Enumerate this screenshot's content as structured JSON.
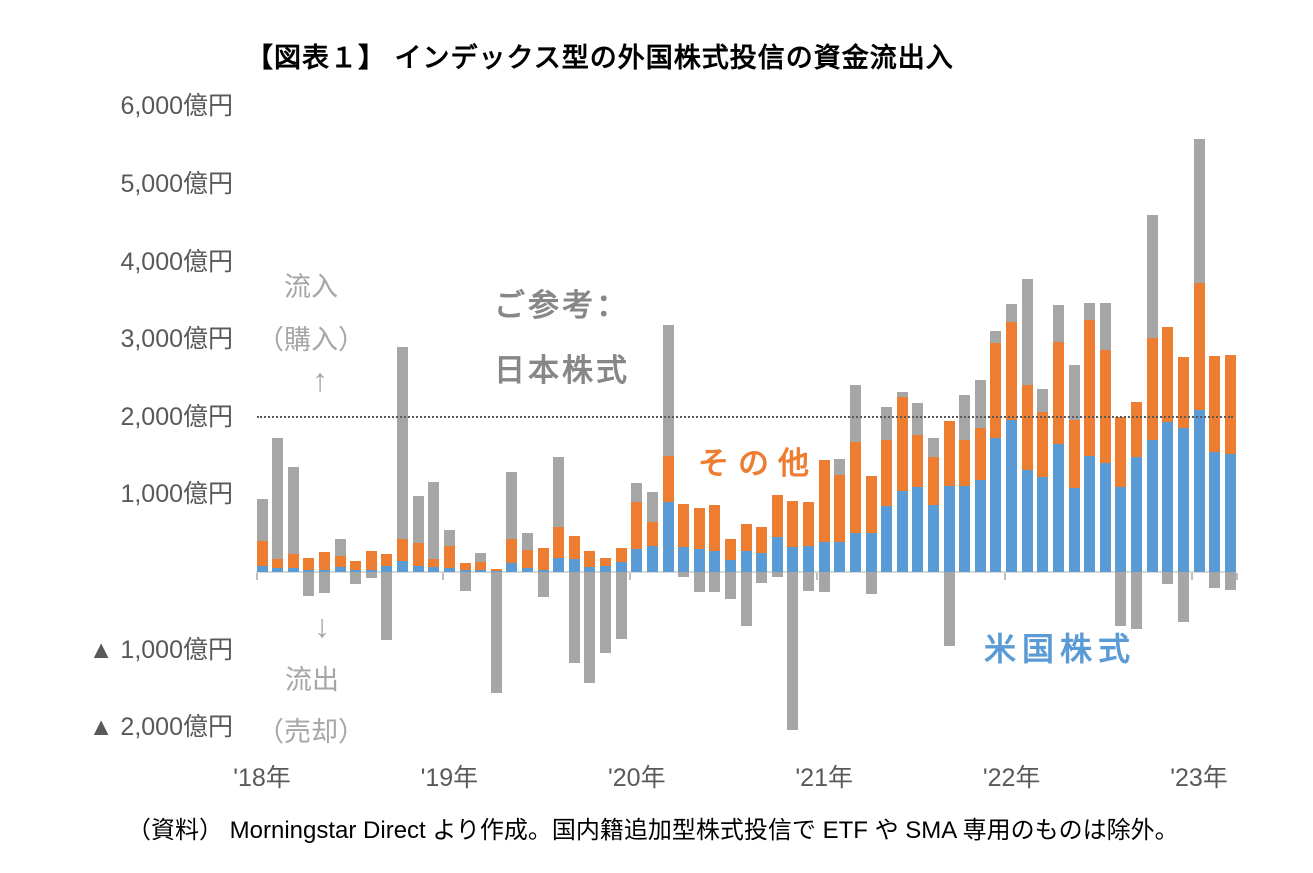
{
  "title": "【図表１】 インデックス型の外国株式投信の資金流出入",
  "source_note": "（資料） Morningstar Direct より作成。国内籍追加型株式投信で ETF や SMA 専用のものは除外。",
  "annotations": {
    "inflow_line1": "流入",
    "inflow_line2": "（購入）",
    "inflow_arrow": "↑",
    "outflow_arrow": "↓",
    "outflow_line1": "流出",
    "outflow_line2": "（売却）",
    "japan_ref_line1": "ご参考：",
    "japan_ref_line2": "日本株式",
    "series_label_other": "その他",
    "series_label_us": "米国株式"
  },
  "colors": {
    "us_blue": "#5B9BD5",
    "other_orange": "#ED7D31",
    "japan_gray": "#A6A6A6",
    "axis_text": "#595959",
    "zero_line": "#D9D9D9",
    "reference_dotted": "#595959"
  },
  "y_axis_labels": [
    {
      "text": "6,000億円",
      "value": 6000
    },
    {
      "text": "5,000億円",
      "value": 5000
    },
    {
      "text": "4,000億円",
      "value": 4000
    },
    {
      "text": "3,000億円",
      "value": 3000
    },
    {
      "text": "2,000億円",
      "value": 2000
    },
    {
      "text": "1,000億円",
      "value": 1000
    },
    {
      "text": "▲ 1,000億円",
      "value": -1000
    },
    {
      "text": "▲ 2,000億円",
      "value": -2000
    }
  ],
  "x_axis_labels": [
    {
      "text": "'18年",
      "month_index": 0
    },
    {
      "text": "'19年",
      "month_index": 12
    },
    {
      "text": "'20年",
      "month_index": 24
    },
    {
      "text": "'21年",
      "month_index": 36
    },
    {
      "text": "'22年",
      "month_index": 48
    },
    {
      "text": "'23年",
      "month_index": 60
    }
  ],
  "chart_data": {
    "type": "bar",
    "stacked": true,
    "unit": "億円",
    "title": "インデックス型の外国株式投信の資金流出入",
    "ylim": [
      -2000,
      6000
    ],
    "grid": false,
    "reference_line_value": 2000,
    "x": [
      "2018-01",
      "2018-02",
      "2018-03",
      "2018-04",
      "2018-05",
      "2018-06",
      "2018-07",
      "2018-08",
      "2018-09",
      "2018-10",
      "2018-11",
      "2018-12",
      "2019-01",
      "2019-02",
      "2019-03",
      "2019-04",
      "2019-05",
      "2019-06",
      "2019-07",
      "2019-08",
      "2019-09",
      "2019-10",
      "2019-11",
      "2019-12",
      "2020-01",
      "2020-02",
      "2020-03",
      "2020-04",
      "2020-05",
      "2020-06",
      "2020-07",
      "2020-08",
      "2020-09",
      "2020-10",
      "2020-11",
      "2020-12",
      "2021-01",
      "2021-02",
      "2021-03",
      "2021-04",
      "2021-05",
      "2021-06",
      "2021-07",
      "2021-08",
      "2021-09",
      "2021-10",
      "2021-11",
      "2021-12",
      "2022-01",
      "2022-02",
      "2022-03",
      "2022-04",
      "2022-05",
      "2022-06",
      "2022-07",
      "2022-08",
      "2022-09",
      "2022-10",
      "2022-11",
      "2022-12",
      "2023-01",
      "2023-02",
      "2023-03"
    ],
    "series": [
      {
        "name": "米国株式",
        "color": "#5B9BD5",
        "values": [
          80,
          50,
          50,
          25,
          25,
          65,
          30,
          25,
          80,
          140,
          80,
          65,
          50,
          25,
          30,
          10,
          115,
          50,
          25,
          180,
          170,
          65,
          75,
          135,
          300,
          340,
          900,
          320,
          300,
          270,
          160,
          265,
          250,
          455,
          325,
          335,
          390,
          390,
          505,
          505,
          855,
          1040,
          1100,
          865,
          1110,
          1110,
          1190,
          1730,
          1955,
          1315,
          1225,
          1650,
          1085,
          1500,
          1400,
          1100,
          1485,
          1700,
          1935,
          1850,
          2085,
          1550,
          1525
        ]
      },
      {
        "name": "その他",
        "color": "#ED7D31",
        "values": [
          325,
          120,
          180,
          160,
          235,
          145,
          115,
          250,
          155,
          290,
          295,
          105,
          285,
          90,
          100,
          30,
          310,
          235,
          285,
          395,
          295,
          205,
          105,
          175,
          605,
          305,
          590,
          560,
          530,
          590,
          270,
          350,
          335,
          540,
          590,
          570,
          1055,
          865,
          1175,
          735,
          850,
          1215,
          660,
          620,
          830,
          595,
          660,
          1215,
          1270,
          1095,
          840,
          1320,
          870,
          1750,
          1460,
          900,
          710,
          1310,
          1225,
          925,
          1635,
          1235,
          1270
        ]
      },
      {
        "name": "日本株式（ご参考）",
        "color": "#A6A6A6",
        "values": [
          530,
          1560,
          1120,
          -310,
          -270,
          215,
          -155,
          -75,
          -870,
          2470,
          610,
          995,
          210,
          -245,
          115,
          -1565,
          865,
          220,
          -325,
          910,
          -1175,
          -1435,
          -1045,
          -865,
          245,
          390,
          1690,
          -65,
          -260,
          -260,
          -350,
          -700,
          -140,
          -60,
          -2030,
          -245,
          -260,
          205,
          735,
          -285,
          425,
          65,
          415,
          245,
          -955,
          570,
          620,
          155,
          225,
          1365,
          290,
          470,
          715,
          220,
          610,
          -700,
          -730,
          1590,
          -150,
          -640,
          1860,
          -200,
          -230
        ]
      }
    ],
    "legend_position": "in-plot text labels"
  }
}
